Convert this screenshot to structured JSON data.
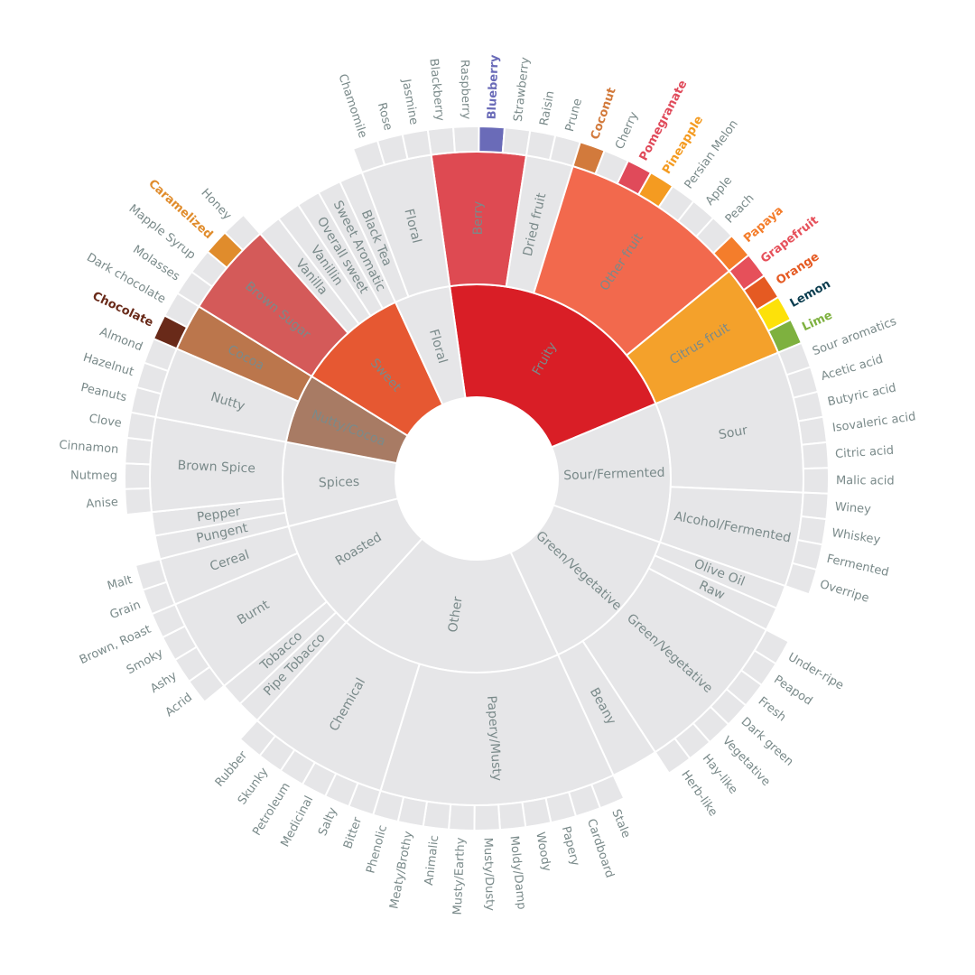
{
  "chart_data": {
    "type": "sunburst",
    "title": "",
    "start_angle_deg": -8,
    "colors": {
      "neutral": "#e6e6e8",
      "neutral_label": "#7a8a8a"
    },
    "hierarchy": [
      {
        "name": "Fruity",
        "color": "#d91e26",
        "children": [
          {
            "name": "Berry",
            "color": "#de4a52",
            "children": [
              {
                "name": "Blackberry",
                "value": 1
              },
              {
                "name": "Raspberry",
                "value": 1
              },
              {
                "name": "Blueberry",
                "value": 1,
                "color": "#6a6bb8"
              },
              {
                "name": "Strawberry",
                "value": 1
              }
            ]
          },
          {
            "name": "Dried fruit",
            "children": [
              {
                "name": "Raisin",
                "value": 1
              },
              {
                "name": "Prune",
                "value": 1
              }
            ]
          },
          {
            "name": "Other fruit",
            "color": "#f2694d",
            "children": [
              {
                "name": "Coconut",
                "value": 1,
                "color": "#d27a3c"
              },
              {
                "name": "Cherry",
                "value": 1
              },
              {
                "name": "Pomegranate",
                "value": 1,
                "color": "#e04a5a"
              },
              {
                "name": "Pineapple",
                "value": 1,
                "color": "#f49b21"
              },
              {
                "name": "Persian Melon",
                "value": 1
              },
              {
                "name": "Apple",
                "value": 1
              },
              {
                "name": "Peach",
                "value": 1
              },
              {
                "name": "Papaya",
                "value": 1,
                "color": "#f47d2b"
              }
            ]
          },
          {
            "name": "Citrus fruit",
            "color": "#f4a12b",
            "children": [
              {
                "name": "Grapefruit",
                "value": 1,
                "color": "#e6505a"
              },
              {
                "name": "Orange",
                "value": 1,
                "color": "#e55a22"
              },
              {
                "name": "Lemon",
                "value": 1,
                "color": "#fde10a",
                "label_color": "#0b3d4f"
              },
              {
                "name": "Lime",
                "value": 1,
                "color": "#7eb13f"
              }
            ]
          }
        ]
      },
      {
        "name": "Sour/Fermented",
        "children": [
          {
            "name": "Sour",
            "children": [
              {
                "name": "Sour aromatics",
                "value": 1
              },
              {
                "name": "Acetic acid",
                "value": 1
              },
              {
                "name": "Butyric acid",
                "value": 1
              },
              {
                "name": "Isovaleric acid",
                "value": 1
              },
              {
                "name": "Citric acid",
                "value": 1
              },
              {
                "name": "Malic acid",
                "value": 1
              }
            ]
          },
          {
            "name": "Alcohol/Fermented",
            "children": [
              {
                "name": "Winey",
                "value": 1
              },
              {
                "name": "Whiskey",
                "value": 1
              },
              {
                "name": "Fermented",
                "value": 1
              },
              {
                "name": "Overripe",
                "value": 1
              }
            ]
          }
        ]
      },
      {
        "name": "Green/Vegetative",
        "children": [
          {
            "name": "Olive Oil",
            "value": 1
          },
          {
            "name": "Raw",
            "value": 1
          },
          {
            "name": "Green/Vegetative",
            "children": [
              {
                "name": "Under-ripe",
                "value": 1
              },
              {
                "name": "Peapod",
                "value": 1
              },
              {
                "name": "Fresh",
                "value": 1
              },
              {
                "name": "Dark green",
                "value": 1
              },
              {
                "name": "Vegetative",
                "value": 1
              },
              {
                "name": "Hay-like",
                "value": 1
              },
              {
                "name": "Herb-like",
                "value": 1
              }
            ]
          },
          {
            "name": "Beany",
            "value": 2
          }
        ]
      },
      {
        "name": "Other",
        "children": [
          {
            "name": "Papery/Musty",
            "children": [
              {
                "name": "Stale",
                "value": 1
              },
              {
                "name": "Cardboard",
                "value": 1
              },
              {
                "name": "Papery",
                "value": 1
              },
              {
                "name": "Woody",
                "value": 1
              },
              {
                "name": "Moldy/Damp",
                "value": 1
              },
              {
                "name": "Musty/Dusty",
                "value": 1
              },
              {
                "name": "Musty/Earthy",
                "value": 1
              },
              {
                "name": "Animalic",
                "value": 1
              },
              {
                "name": "Meaty/Brothy",
                "value": 1
              },
              {
                "name": "Phenolic",
                "value": 1
              }
            ]
          },
          {
            "name": "Chemical",
            "children": [
              {
                "name": "Bitter",
                "value": 1
              },
              {
                "name": "Salty",
                "value": 1
              },
              {
                "name": "Medicinal",
                "value": 1
              },
              {
                "name": "Petroleum",
                "value": 1
              },
              {
                "name": "Skunky",
                "value": 1
              },
              {
                "name": "Rubber",
                "value": 1
              }
            ]
          }
        ]
      },
      {
        "name": "Roasted",
        "children": [
          {
            "name": "Pipe Tobacco",
            "value": 1
          },
          {
            "name": "Tobacco",
            "value": 1
          },
          {
            "name": "Burnt",
            "children": [
              {
                "name": "Acrid",
                "value": 1
              },
              {
                "name": "Ashy",
                "value": 1
              },
              {
                "name": "Smoky",
                "value": 1
              },
              {
                "name": "Brown, Roast",
                "value": 1
              }
            ]
          },
          {
            "name": "Cereal",
            "children": [
              {
                "name": "Grain",
                "value": 1
              },
              {
                "name": "Malt",
                "value": 1
              }
            ]
          }
        ]
      },
      {
        "name": "Spices",
        "children": [
          {
            "name": "Pungent",
            "value": 1
          },
          {
            "name": "Pepper",
            "value": 1
          },
          {
            "name": "Brown Spice",
            "children": [
              {
                "name": "Anise",
                "value": 1
              },
              {
                "name": "Nutmeg",
                "value": 1
              },
              {
                "name": "Cinnamon",
                "value": 1
              },
              {
                "name": "Clove",
                "value": 1
              }
            ]
          }
        ]
      },
      {
        "name": "Nutty/Cocoa",
        "color": "#a87b64",
        "children": [
          {
            "name": "Nutty",
            "children": [
              {
                "name": "Peanuts",
                "value": 1
              },
              {
                "name": "Hazelnut",
                "value": 1
              },
              {
                "name": "Almond",
                "value": 1
              }
            ]
          },
          {
            "name": "Cocoa",
            "color": "#bb764c",
            "children": [
              {
                "name": "Chocolate",
                "value": 1,
                "color": "#692a19"
              },
              {
                "name": "Dark chocolate",
                "value": 1
              }
            ]
          }
        ]
      },
      {
        "name": "Sweet",
        "color": "#e65832",
        "children": [
          {
            "name": "Brown Sugar",
            "color": "#d45a59",
            "children": [
              {
                "name": "Molasses",
                "value": 1
              },
              {
                "name": "Mapple Syrup",
                "value": 1
              },
              {
                "name": "Caramelized",
                "value": 1,
                "color": "#e08c2c"
              },
              {
                "name": "Honey",
                "value": 1
              }
            ]
          },
          {
            "name": "Vanilla",
            "value": 1
          },
          {
            "name": "Vanillin",
            "value": 1
          },
          {
            "name": "Overall sweet",
            "value": 1
          },
          {
            "name": "Sweet Aromatic",
            "value": 1
          }
        ]
      },
      {
        "name": "Floral",
        "children": [
          {
            "name": "Black Tea",
            "value": 1
          },
          {
            "name": "Floral",
            "children": [
              {
                "name": "Chamomile",
                "value": 1
              },
              {
                "name": "Rose",
                "value": 1
              },
              {
                "name": "Jasmine",
                "value": 1
              }
            ]
          }
        ]
      }
    ]
  }
}
